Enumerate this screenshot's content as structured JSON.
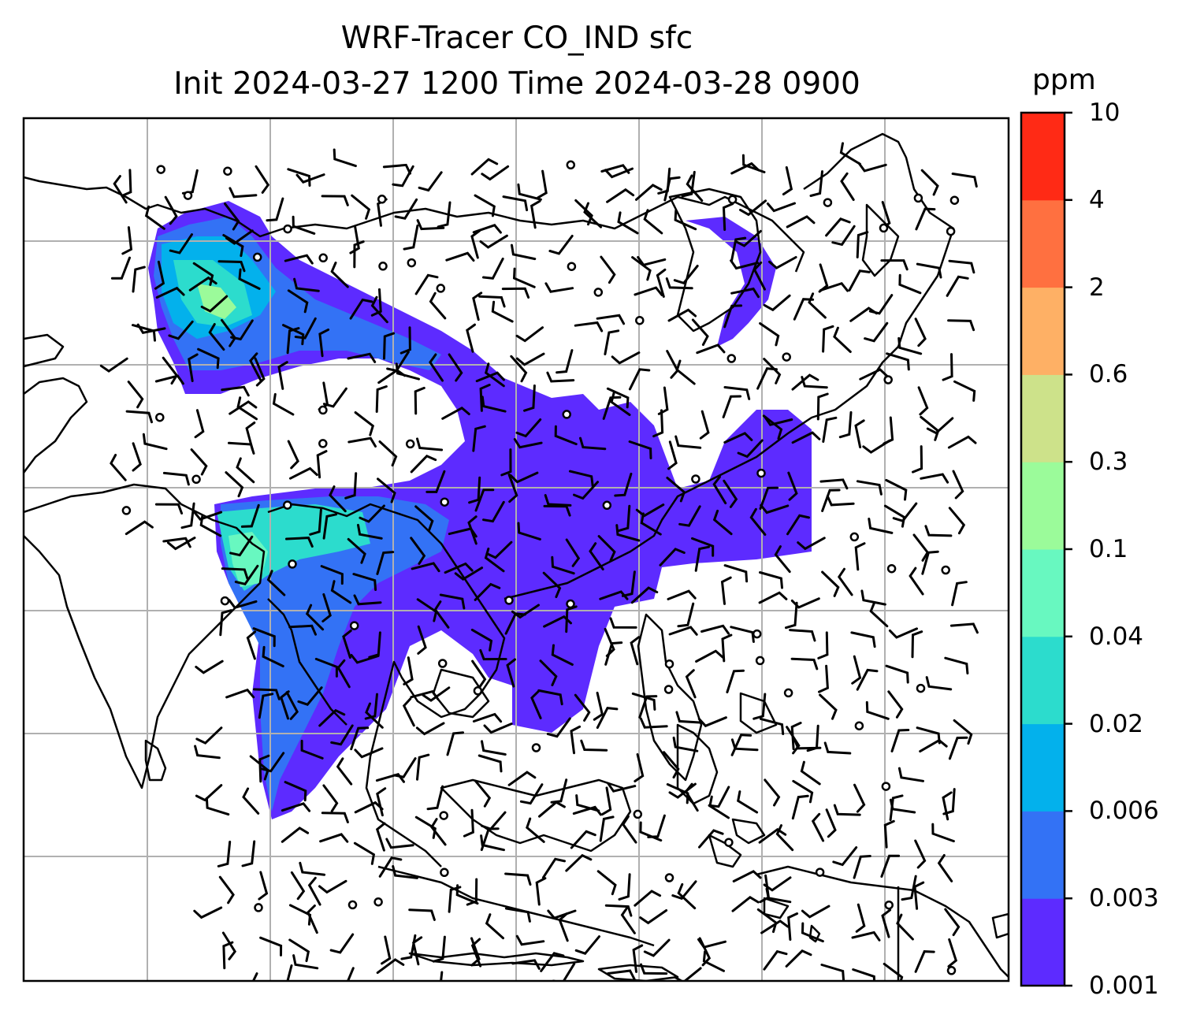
{
  "title_line1": "WRF-Tracer CO_IND sfc",
  "title_line2": "Init 2024-03-27 1200 Time 2024-03-28 0900",
  "colorbar": {
    "unit": "ppm",
    "levels": [
      "0.001",
      "0.003",
      "0.006",
      "0.02",
      "0.04",
      "0.1",
      "0.3",
      "0.6",
      "2",
      "4",
      "10"
    ],
    "colors": [
      "#5d2bff",
      "#3372f5",
      "#03b1ec",
      "#2cdccd",
      "#68f8c0",
      "#9bfb9a",
      "#cde28a",
      "#feb065",
      "#ff7040",
      "#ff2a15"
    ]
  },
  "map": {
    "gridline_color": "#b0b0b0",
    "coastline_color": "#000000",
    "barb_color": "#000000"
  }
}
